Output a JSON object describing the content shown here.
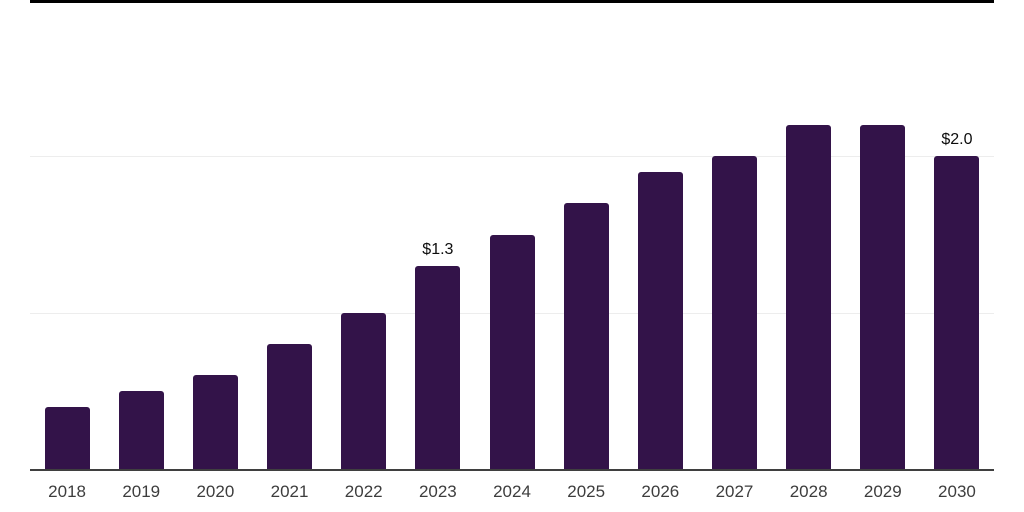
{
  "chart_data": {
    "type": "bar",
    "categories": [
      "2018",
      "2019",
      "2020",
      "2021",
      "2022",
      "2023",
      "2024",
      "2025",
      "2026",
      "2027",
      "2028",
      "2029",
      "2030"
    ],
    "values": [
      0.4,
      0.5,
      0.6,
      0.8,
      1.0,
      1.3,
      1.5,
      1.7,
      1.9,
      2.0,
      2.2,
      2.2,
      2.0
    ],
    "data_labels": [
      {
        "index": 5,
        "text": "$1.3"
      },
      {
        "index": 12,
        "text": "$2.0"
      }
    ],
    "title": "",
    "xlabel": "",
    "ylabel": "",
    "ylim": [
      0,
      3
    ],
    "gridlines_y": [
      1,
      2
    ],
    "legend": "none",
    "grid": "horizontal",
    "colors": {
      "bar": "#331349",
      "top_border": "#000000",
      "gridline": "#ededed",
      "axis_line": "#3f3f3f",
      "tick_label": "#3d3d3d",
      "data_label": "#0d0d0d",
      "background": "#ffffff"
    }
  }
}
